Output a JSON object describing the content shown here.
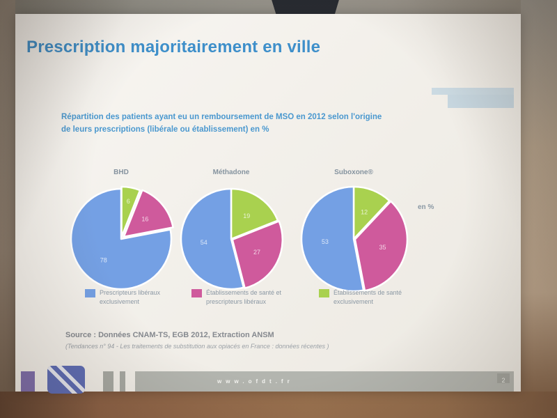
{
  "slide": {
    "title": "Prescription majoritairement en ville",
    "accent_color": "#3e8fca",
    "subtitle_line1": "Répartition des patients ayant eu un remboursement de MSO en 2012 selon l'origine",
    "subtitle_line2": "de leurs prescriptions (libérale ou établissement) en %",
    "unit_label": "en %",
    "source_line1": "Source : Données CNAM-TS, EGB 2012, Extraction ANSM",
    "source_line2": "(Tendances n° 94 - Les traitements de substitution aux opiacés en France : données récentes )",
    "footer_url": "www.ofdt.fr",
    "page_number": "2"
  },
  "chart_data": {
    "type": "pie",
    "title": "Répartition des patients ayant eu un remboursement de MSO en 2012 selon l'origine de leurs prescriptions (libérale ou établissement) en %",
    "unit": "%",
    "legend_position": "bottom",
    "legend": [
      {
        "label": "Prescripteurs libéraux exclusivement",
        "color": "#74a0e4"
      },
      {
        "label": "Établissements de santé et prescripteurs libéraux",
        "color": "#cf5a9c"
      },
      {
        "label": "Établissements de santé exclusivement",
        "color": "#a9d14f"
      }
    ],
    "pies": [
      {
        "name": "BHD",
        "values": [
          78,
          16,
          6
        ],
        "radius": 72,
        "explode": [
          0,
          5,
          3
        ]
      },
      {
        "name": "Méthadone",
        "values": [
          54,
          27,
          19
        ],
        "radius": 72,
        "explode": [
          0,
          2,
          0
        ]
      },
      {
        "name": "Suboxone®",
        "values": [
          53,
          35,
          12
        ],
        "radius": 75,
        "explode": [
          0,
          2,
          0
        ]
      }
    ]
  }
}
